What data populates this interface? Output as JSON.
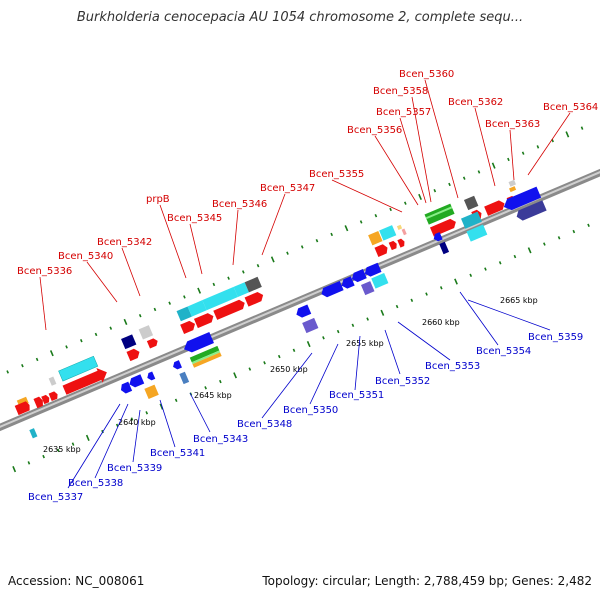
{
  "title": "Burkholderia cenocepacia AU 1054 chromosome 2, complete sequ...",
  "footer": {
    "accession": "Accession: NC_008061",
    "summary": "Topology: circular; Length: 2,788,459 bp; Genes: 2,482"
  },
  "colors": {
    "label_top": "#d40000",
    "label_bottom": "#0000cc",
    "backbone": "#808080",
    "tick": "#006600"
  },
  "scale": [
    "2635 kbp",
    "2640 kbp",
    "2645 kbp",
    "2650 kbp",
    "2655 kbp",
    "2660 kbp",
    "2665 kbp"
  ],
  "labels_top": [
    "Bcen_5336",
    "Bcen_5340",
    "Bcen_5342",
    "prpB",
    "Bcen_5345",
    "Bcen_5346",
    "Bcen_5347",
    "Bcen_5355",
    "Bcen_5356",
    "Bcen_5357",
    "Bcen_5358",
    "Bcen_5360",
    "Bcen_5362",
    "Bcen_5363",
    "Bcen_5364"
  ],
  "labels_bottom": [
    "Bcen_5337",
    "Bcen_5338",
    "Bcen_5339",
    "Bcen_5341",
    "Bcen_5343",
    "Bcen_5348",
    "Bcen_5350",
    "Bcen_5351",
    "Bcen_5352",
    "Bcen_5353",
    "Bcen_5354",
    "Bcen_5359"
  ]
}
